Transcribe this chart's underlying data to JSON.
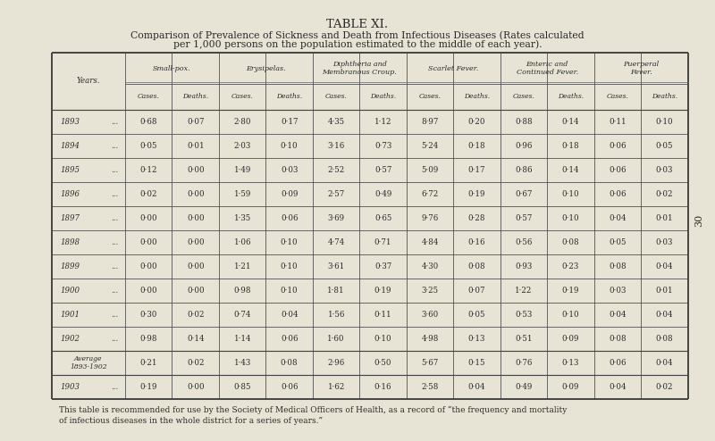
{
  "title": "TABLE XI.",
  "subtitle_line1": "Comparison of Prevalence of Sickness and Death from Infectious Diseases (Rates calculated",
  "subtitle_line2": "per 1,000 persons on the population estimated to the middle of each year).",
  "bg_color": "#e8e4d5",
  "table_bg": "#f0ede0",
  "col_groups": [
    "Small-pox.",
    "Erysipelas.",
    "Diphtheria and\nMembranous Croup.",
    "Scarlet Fever.",
    "Enteric and\nContinued Fever.",
    "Puerperal\nFever."
  ],
  "years": [
    "1893",
    "1894",
    "1895",
    "1896",
    "1897",
    "1898",
    "1899",
    "1900",
    "1901",
    "1902",
    "Average\n1893-1902",
    "1903"
  ],
  "data": [
    [
      "0·68",
      "0·07",
      "2·80",
      "0·17",
      "4·35",
      "1·12",
      "8·97",
      "0·20",
      "0·88",
      "0·14",
      "0·11",
      "0·10"
    ],
    [
      "0·05",
      "0·01",
      "2·03",
      "0·10",
      "3·16",
      "0·73",
      "5·24",
      "0·18",
      "0·96",
      "0·18",
      "0·06",
      "0·05"
    ],
    [
      "0·12",
      "0·00",
      "1·49",
      "0·03",
      "2·52",
      "0·57",
      "5·09",
      "0·17",
      "0·86",
      "0·14",
      "0·06",
      "0·03"
    ],
    [
      "0·02",
      "0·00",
      "1·59",
      "0·09",
      "2·57",
      "0·49",
      "6·72",
      "0·19",
      "0·67",
      "0·10",
      "0·06",
      "0·02"
    ],
    [
      "0·00",
      "0·00",
      "1·35",
      "0·06",
      "3·69",
      "0·65",
      "9·76",
      "0·28",
      "0·57",
      "0·10",
      "0·04",
      "0·01"
    ],
    [
      "0·00",
      "0·00",
      "1·06",
      "0·10",
      "4·74",
      "0·71",
      "4·84",
      "0·16",
      "0·56",
      "0·08",
      "0·05",
      "0·03"
    ],
    [
      "0·00",
      "0·00",
      "1·21",
      "0·10",
      "3·61",
      "0·37",
      "4·30",
      "0·08",
      "0·93",
      "0·23",
      "0·08",
      "0·04"
    ],
    [
      "0·00",
      "0·00",
      "0·98",
      "0·10",
      "1·81",
      "0·19",
      "3·25",
      "0·07",
      "1·22",
      "0·19",
      "0·03",
      "0·01"
    ],
    [
      "0·30",
      "0·02",
      "0·74",
      "0·04",
      "1·56",
      "0·11",
      "3·60",
      "0·05",
      "0·53",
      "0·10",
      "0·04",
      "0·04"
    ],
    [
      "0·98",
      "0·14",
      "1·14",
      "0·06",
      "1·60",
      "0·10",
      "4·98",
      "0·13",
      "0·51",
      "0·09",
      "0·08",
      "0·08"
    ],
    [
      "0·21",
      "0·02",
      "1·43",
      "0·08",
      "2·96",
      "0·50",
      "5·67",
      "0·15",
      "0·76",
      "0·13",
      "0·06",
      "0·04"
    ],
    [
      "0·19",
      "0·00",
      "0·85",
      "0·06",
      "1·62",
      "0·16",
      "2·58",
      "0·04",
      "0·49",
      "0·09",
      "0·04",
      "0·02"
    ]
  ],
  "footer": "This table is recommended for use by the Society of Medical Officers of Health, as a record of “the frequency and mortality\nof infectious diseases in the whole district for a series of years.”",
  "page_num": "30"
}
